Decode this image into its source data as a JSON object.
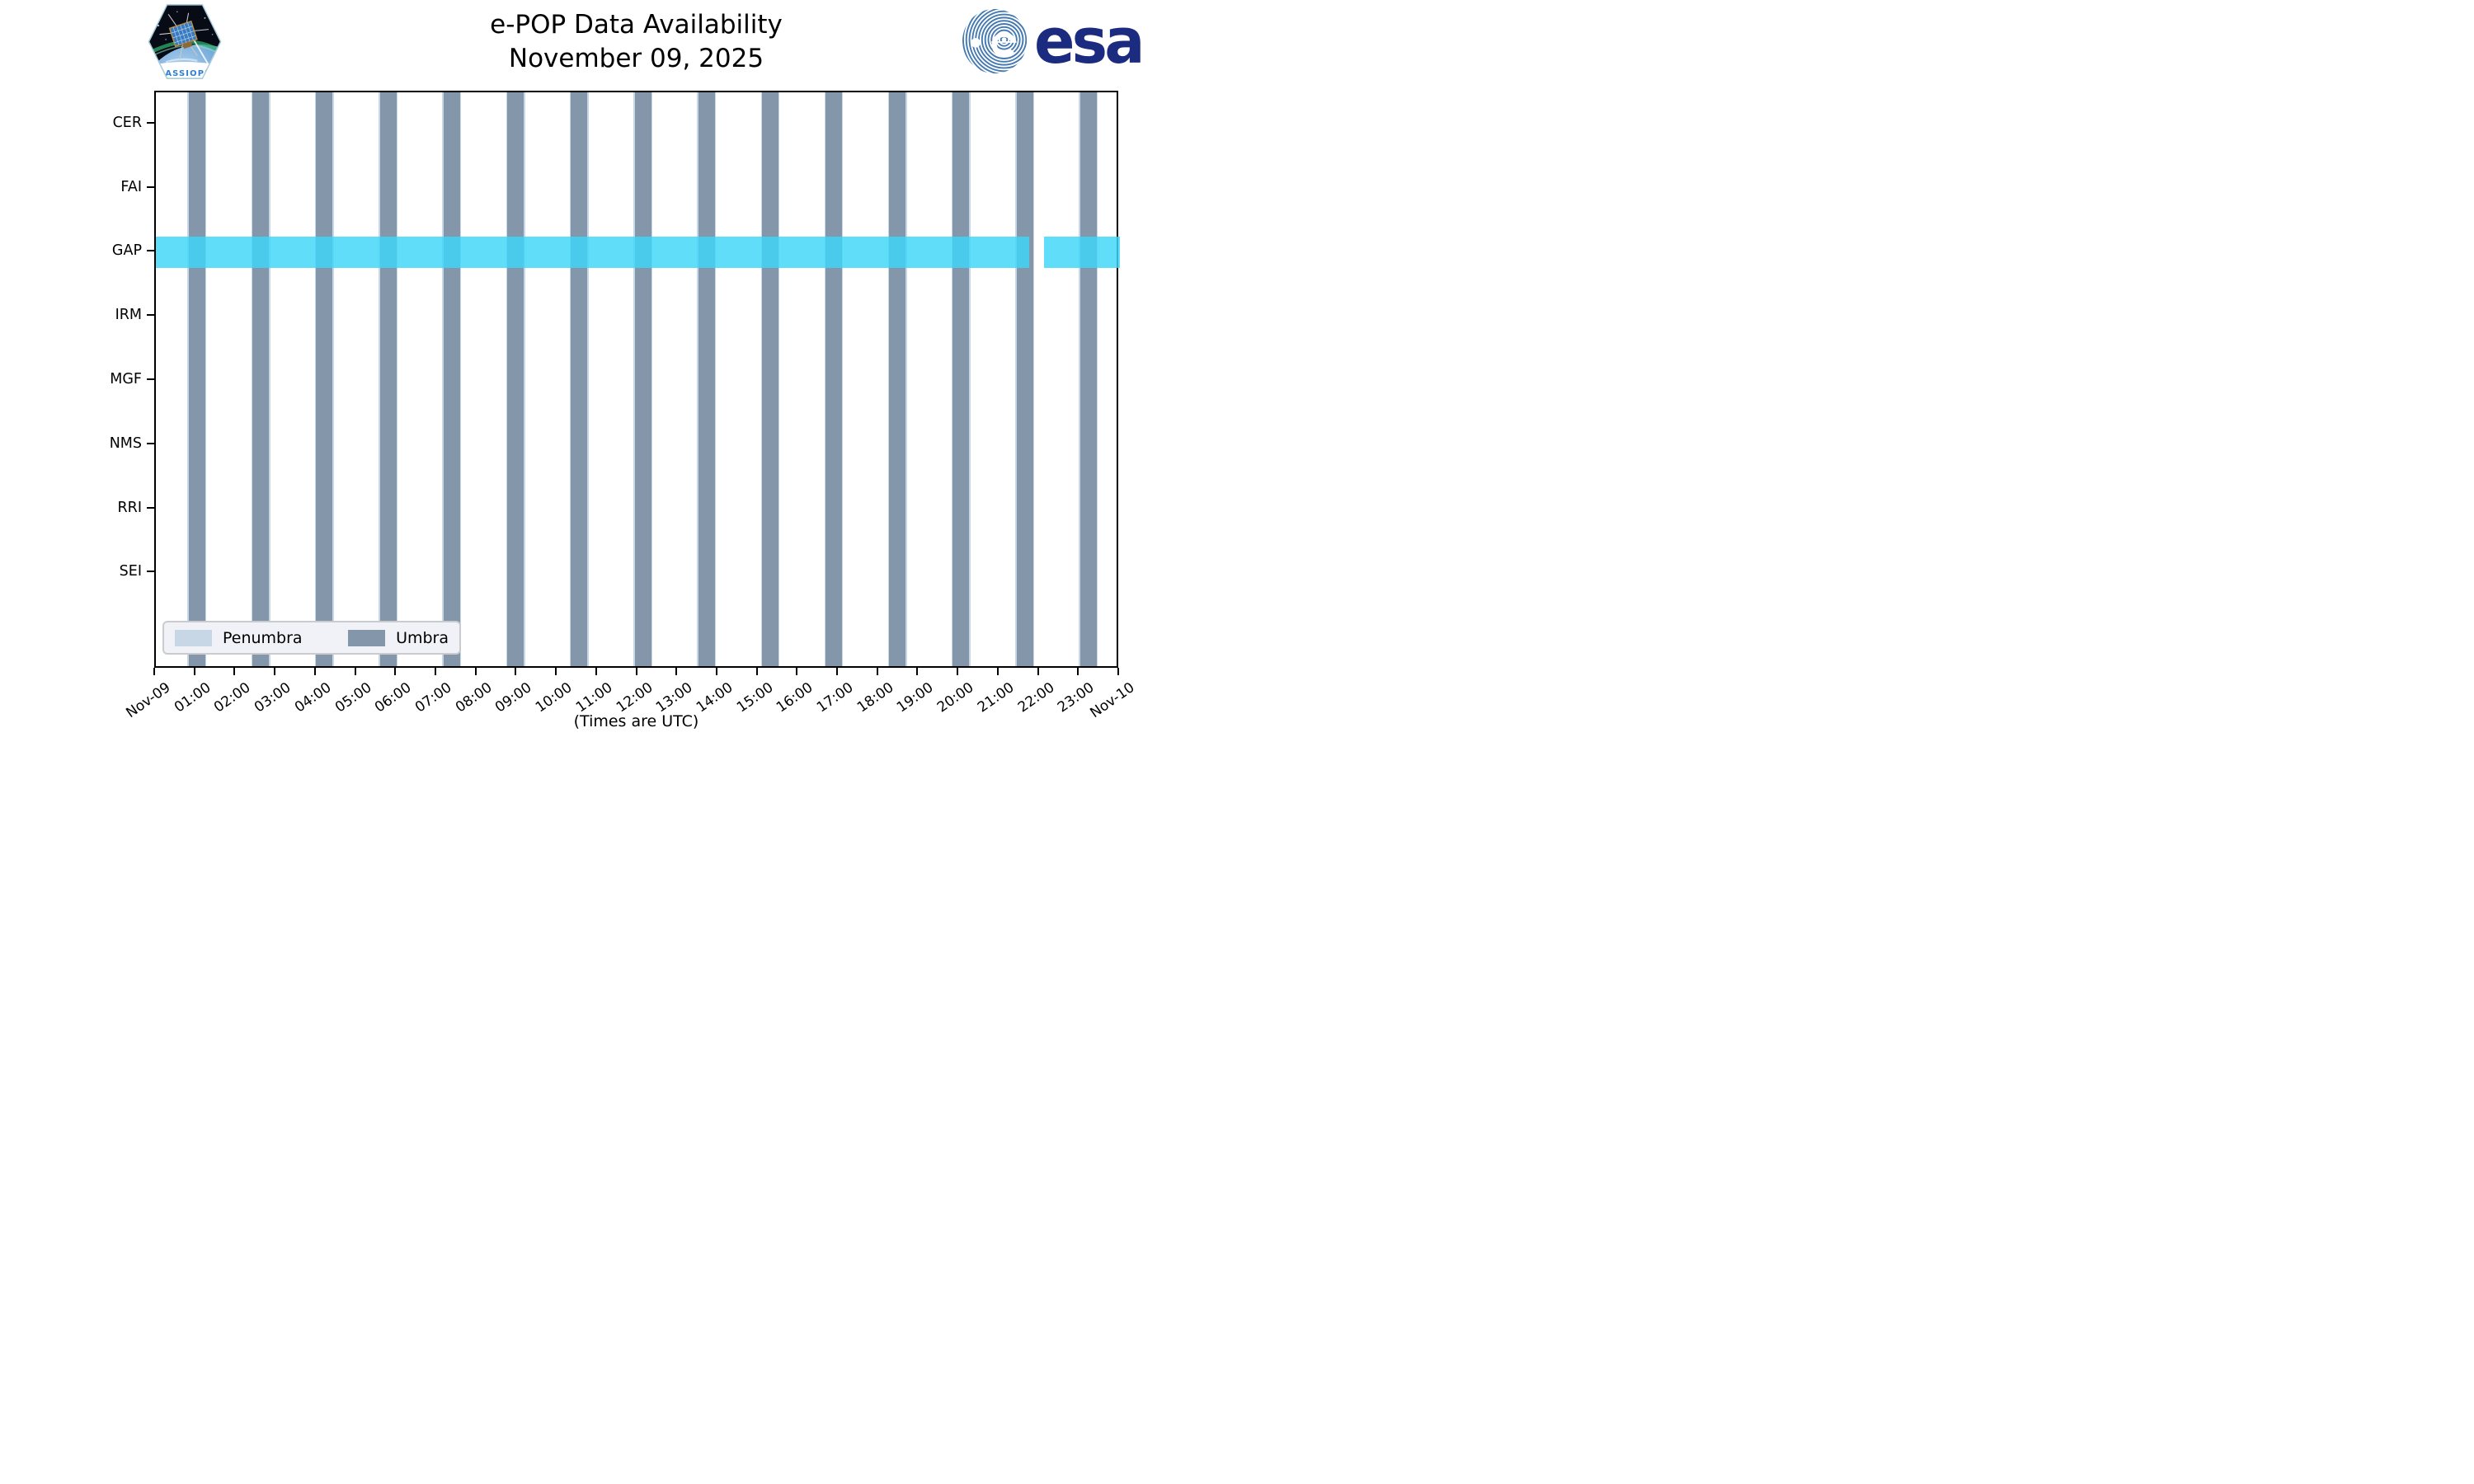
{
  "header": {
    "title_line1": "e-POP Data Availability",
    "title_line2": "November 09, 2025",
    "cassiope_patch_text": "CASSIOPE",
    "esa_logo_text": "esa"
  },
  "chart_data": {
    "type": "bar",
    "subtype": "instrument-availability-timeline",
    "title": "e-POP Data Availability — November 09, 2025",
    "xlabel": "(Times are UTC)",
    "x_axis": {
      "unit": "hours UTC on 2025-11-09",
      "range_hours": [
        0,
        24
      ],
      "tick_interval_hours": 1,
      "tick_labels": [
        "Nov-09",
        "01:00",
        "02:00",
        "03:00",
        "04:00",
        "05:00",
        "06:00",
        "07:00",
        "08:00",
        "09:00",
        "10:00",
        "11:00",
        "12:00",
        "13:00",
        "14:00",
        "15:00",
        "16:00",
        "17:00",
        "18:00",
        "19:00",
        "20:00",
        "21:00",
        "22:00",
        "23:00",
        "Nov-10"
      ]
    },
    "y_rows": [
      "CER",
      "FAI",
      "GAP",
      "IRM",
      "MGF",
      "NMS",
      "RRI",
      "SEI"
    ],
    "umbra_windows_hours": [
      [
        0.82,
        1.23
      ],
      [
        2.41,
        2.82
      ],
      [
        3.99,
        4.4
      ],
      [
        5.58,
        5.99
      ],
      [
        7.16,
        7.57
      ],
      [
        8.75,
        9.16
      ],
      [
        10.33,
        10.74
      ],
      [
        11.92,
        12.33
      ],
      [
        13.5,
        13.91
      ],
      [
        15.09,
        15.5
      ],
      [
        16.67,
        17.08
      ],
      [
        18.26,
        18.67
      ],
      [
        19.84,
        20.25
      ],
      [
        21.43,
        21.84
      ],
      [
        23.01,
        23.42
      ]
    ],
    "penumbra_pad_hours": 0.03,
    "availability": [
      {
        "row": "GAP",
        "segments_hours": [
          [
            0,
            21.74
          ],
          [
            22.11,
            24
          ]
        ]
      }
    ],
    "legend": {
      "position": "lower left",
      "entries": [
        {
          "label": "Penumbra",
          "color": "#C8D7E6"
        },
        {
          "label": "Umbra",
          "color": "#8496A9"
        }
      ]
    },
    "colors": {
      "umbra": "#8496A9",
      "penumbra": "#C8D7E6",
      "availability_band": "rgba(64,214,248,0.83)",
      "axis": "#000000",
      "background": "#FFFFFF"
    },
    "grid": false
  }
}
